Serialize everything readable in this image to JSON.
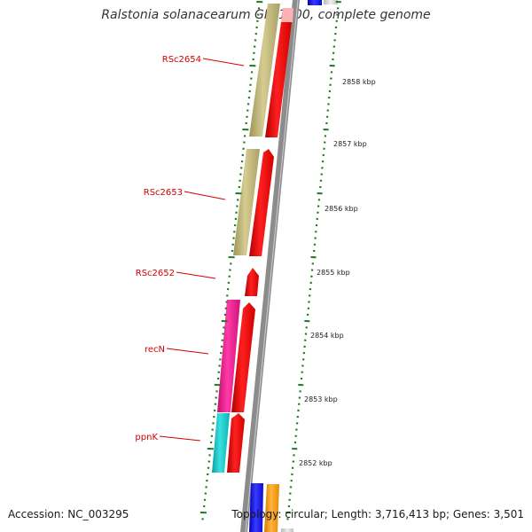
{
  "header": {
    "title": "Ralstonia solanacearum GMI1000, complete genome"
  },
  "footer": {
    "accession": "Accession: NC_003295",
    "summary": "Topology: circular; Length: 3,716,413 bp; Genes: 3,501"
  },
  "colors": {
    "label_red": "#d40000",
    "tick_green": "#1f7a1f",
    "backbone": "#8c8c8c",
    "arrow_red": "#ee0000",
    "olive": "#bdb276",
    "magenta": "#e8158c",
    "cyan": "#14c2c2",
    "blue": "#1414e6",
    "orange": "#ff9a00"
  },
  "gene_labels": [
    {
      "id": "rsc2654",
      "text": "RSc2654"
    },
    {
      "id": "rsc2653",
      "text": "RSc2653"
    },
    {
      "id": "rsc2652",
      "text": "RSc2652"
    },
    {
      "id": "recN",
      "text": "recN"
    },
    {
      "id": "ppnK",
      "text": "ppnK"
    }
  ],
  "scale_labels": [
    "2858 kbp",
    "2857 kbp",
    "2856 kbp",
    "2855 kbp",
    "2854 kbp",
    "2853 kbp",
    "2852 kbp"
  ]
}
